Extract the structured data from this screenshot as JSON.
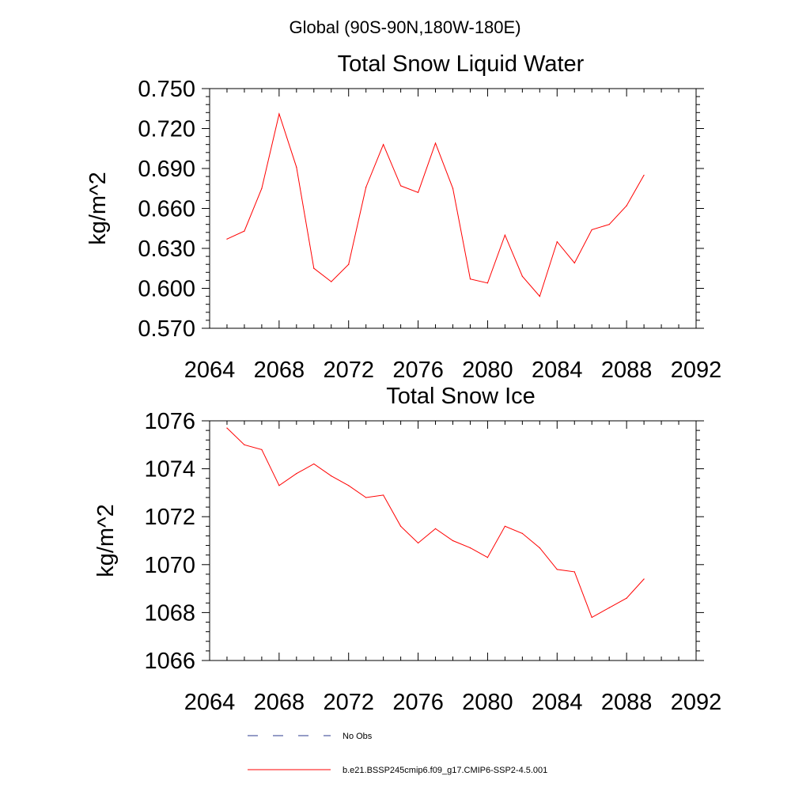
{
  "header": {
    "region": "Global (90S-90N,180W-180E)"
  },
  "chart_data": [
    {
      "type": "line",
      "title": "Total Snow Liquid Water",
      "xlabel": "",
      "ylabel": "kg/m^2",
      "xlim": [
        2064,
        2092
      ],
      "ylim": [
        0.57,
        0.75
      ],
      "xticks": [
        2064,
        2068,
        2072,
        2076,
        2080,
        2084,
        2088,
        2092
      ],
      "xtick_labels": [
        "2064",
        "2068",
        "2072",
        "2076",
        "2080",
        "2084",
        "2088",
        "2092"
      ],
      "yticks": [
        0.57,
        0.6,
        0.63,
        0.66,
        0.69,
        0.72,
        0.75
      ],
      "ytick_labels": [
        "0.570",
        "0.600",
        "0.630",
        "0.660",
        "0.690",
        "0.720",
        "0.750"
      ],
      "grid": false,
      "series": [
        {
          "name": "b.e21.BSSP245cmip6.f09_g17.CMIP6-SSP2-4.5.001",
          "color": "#ff0000",
          "x": [
            2065,
            2066,
            2067,
            2068,
            2069,
            2070,
            2071,
            2072,
            2073,
            2074,
            2075,
            2076,
            2077,
            2078,
            2079,
            2080,
            2081,
            2082,
            2083,
            2084,
            2085,
            2086,
            2087,
            2088,
            2089
          ],
          "values": [
            0.637,
            0.643,
            0.675,
            0.731,
            0.691,
            0.615,
            0.605,
            0.618,
            0.676,
            0.708,
            0.677,
            0.672,
            0.709,
            0.675,
            0.607,
            0.604,
            0.64,
            0.609,
            0.594,
            0.635,
            0.619,
            0.644,
            0.648,
            0.662,
            0.685
          ]
        }
      ]
    },
    {
      "type": "line",
      "title": "Total Snow Ice",
      "xlabel": "",
      "ylabel": "kg/m^2",
      "xlim": [
        2064,
        2092
      ],
      "ylim": [
        1066,
        1076
      ],
      "xticks": [
        2064,
        2068,
        2072,
        2076,
        2080,
        2084,
        2088,
        2092
      ],
      "xtick_labels": [
        "2064",
        "2068",
        "2072",
        "2076",
        "2080",
        "2084",
        "2088",
        "2092"
      ],
      "yticks": [
        1066,
        1068,
        1070,
        1072,
        1074,
        1076
      ],
      "ytick_labels": [
        "1066",
        "1068",
        "1070",
        "1072",
        "1074",
        "1076"
      ],
      "grid": false,
      "series": [
        {
          "name": "b.e21.BSSP245cmip6.f09_g17.CMIP6-SSP2-4.5.001",
          "color": "#ff0000",
          "x": [
            2065,
            2066,
            2067,
            2068,
            2069,
            2070,
            2071,
            2072,
            2073,
            2074,
            2075,
            2076,
            2077,
            2078,
            2079,
            2080,
            2081,
            2082,
            2083,
            2084,
            2085,
            2086,
            2087,
            2088,
            2089
          ],
          "values": [
            1075.7,
            1075.0,
            1074.8,
            1073.3,
            1073.8,
            1074.2,
            1073.7,
            1073.3,
            1072.8,
            1072.9,
            1071.6,
            1070.9,
            1071.5,
            1071.0,
            1070.7,
            1070.3,
            1071.6,
            1071.3,
            1070.7,
            1069.8,
            1069.7,
            1067.8,
            1068.2,
            1068.6,
            1069.4
          ]
        }
      ]
    }
  ],
  "legend": {
    "items": [
      {
        "label": "No Obs",
        "color": "#2b3a8f",
        "style": "dashed"
      },
      {
        "label": "b.e21.BSSP245cmip6.f09_g17.CMIP6-SSP2-4.5.001",
        "color": "#ff0000",
        "style": "solid"
      }
    ]
  }
}
